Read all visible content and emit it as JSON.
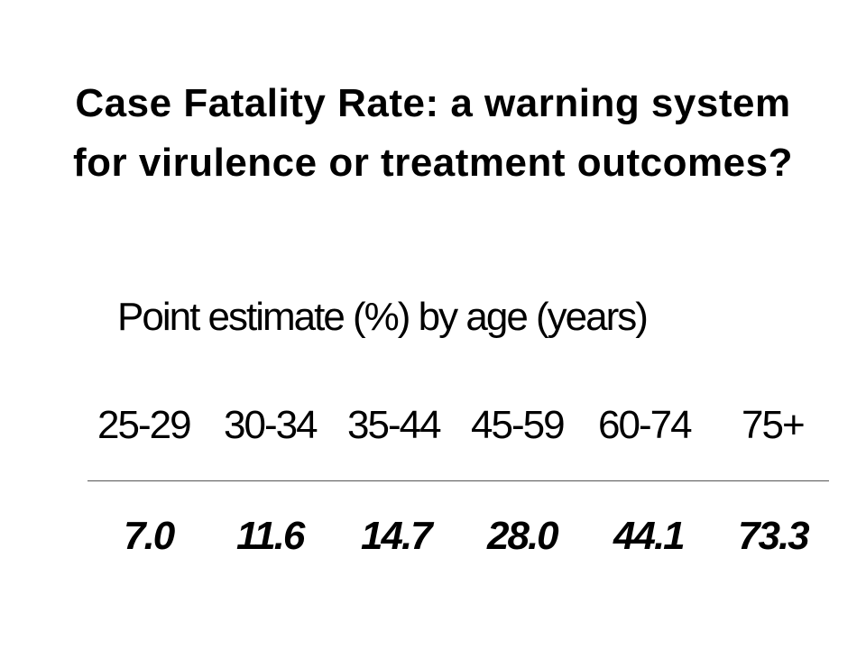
{
  "slide": {
    "title": "Case Fatality Rate: a warning system for virulence or treatment outcomes?",
    "subtitle": "Point estimate (%) by age (years)"
  },
  "table": {
    "age_groups": [
      "25-29",
      "30-34",
      "35-44",
      "45-59",
      "60-74",
      "75+"
    ],
    "point_estimates": [
      "7.0",
      "11.6",
      "14.7",
      "28.0",
      "44.1",
      "73.3"
    ]
  }
}
